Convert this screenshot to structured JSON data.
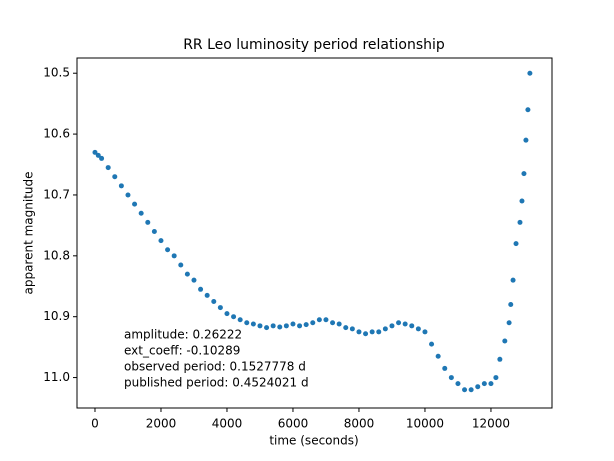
{
  "chart_data": {
    "type": "scatter",
    "title": "RR Leo luminosity period relationship",
    "x_label": "time (seconds)",
    "y_label": "apparent magnitude",
    "annotations": [
      "amplitude: 0.26222",
      "ext_coeff: -0.10289",
      "observed period: 0.1527778 d",
      "published period: 0.4524021 d"
    ],
    "color": "#1f77b4",
    "xlim": [
      -545,
      13850
    ],
    "ylim": [
      11.05,
      10.475
    ],
    "xticks": [
      0,
      2000,
      4000,
      6000,
      8000,
      10000,
      12000
    ],
    "yticks": [
      10.5,
      10.6,
      10.7,
      10.8,
      10.9,
      {
        "value": 11,
        "label": "11.0"
      }
    ],
    "x": [
      0,
      100,
      200,
      400,
      600,
      800,
      1000,
      1200,
      1400,
      1600,
      1800,
      2000,
      2200,
      2400,
      2600,
      2800,
      3000,
      3200,
      3400,
      3600,
      3800,
      4000,
      4200,
      4400,
      4600,
      4800,
      5000,
      5200,
      5400,
      5600,
      5800,
      6000,
      6200,
      6400,
      6600,
      6800,
      7000,
      7200,
      7400,
      7600,
      7800,
      8000,
      8200,
      8400,
      8600,
      8800,
      9000,
      9200,
      9400,
      9600,
      9800,
      10000,
      10200,
      10400,
      10600,
      10800,
      11000,
      11200,
      11400,
      11600,
      11800,
      12000,
      12150,
      12270,
      12420,
      12550,
      12600,
      12670,
      12760,
      12880,
      12940,
      13000,
      13060,
      13120,
      13180
    ],
    "y": [
      10.63,
      10.635,
      10.64,
      10.655,
      10.67,
      10.685,
      10.7,
      10.715,
      10.73,
      10.745,
      10.76,
      10.775,
      10.79,
      10.8,
      10.815,
      10.83,
      10.84,
      10.855,
      10.865,
      10.875,
      10.885,
      10.895,
      10.9,
      10.905,
      10.91,
      10.912,
      10.915,
      10.918,
      10.915,
      10.917,
      10.915,
      10.912,
      10.915,
      10.913,
      10.91,
      10.905,
      10.905,
      10.91,
      10.912,
      10.918,
      10.92,
      10.925,
      10.928,
      10.925,
      10.925,
      10.92,
      10.915,
      10.91,
      10.912,
      10.915,
      10.92,
      10.925,
      10.945,
      10.965,
      10.985,
      11.0,
      11.01,
      11.02,
      11.02,
      11.015,
      11.01,
      11.01,
      11.0,
      10.97,
      10.94,
      10.91,
      10.88,
      10.84,
      10.78,
      10.745,
      10.71,
      10.665,
      10.61,
      10.56,
      10.5
    ]
  }
}
